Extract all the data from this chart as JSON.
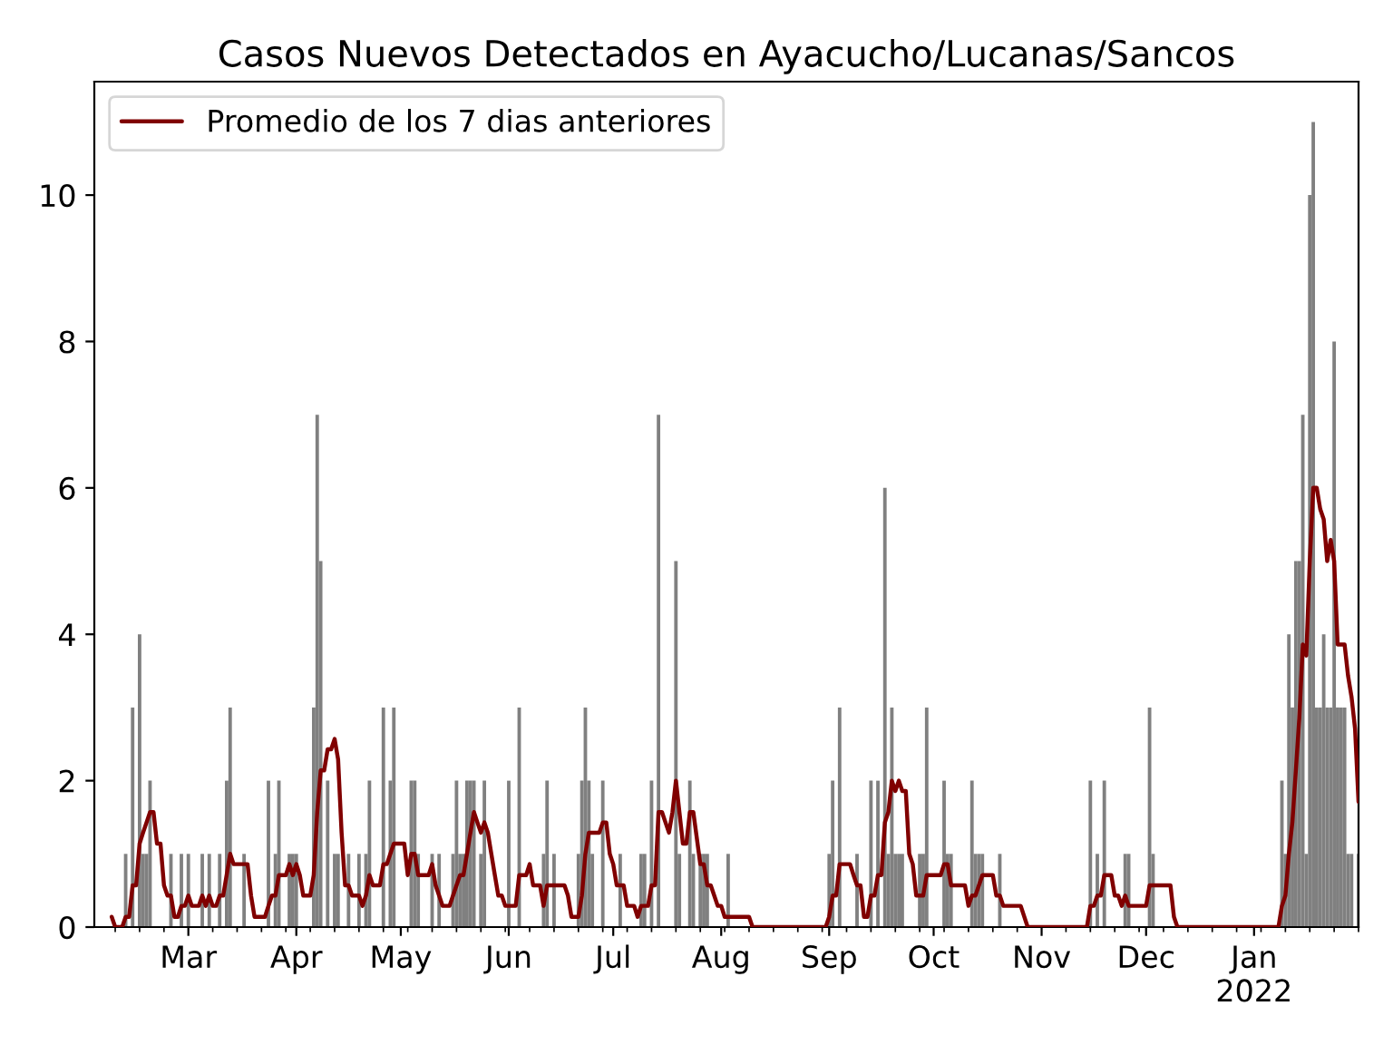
{
  "chart_data": {
    "type": "bar",
    "title": "Casos Nuevos Detectados en Ayacucho/Lucanas/Sancos",
    "xlim": [
      "2021-02-02",
      "2022-01-31"
    ],
    "xticks": [
      {
        "value": "2021-03-01",
        "label": "Mar"
      },
      {
        "value": "2021-04-01",
        "label": "Apr"
      },
      {
        "value": "2021-05-01",
        "label": "May"
      },
      {
        "value": "2021-06-01",
        "label": "Jun"
      },
      {
        "value": "2021-07-01",
        "label": "Jul"
      },
      {
        "value": "2021-08-01",
        "label": "Aug"
      },
      {
        "value": "2021-09-01",
        "label": "Sep"
      },
      {
        "value": "2021-10-01",
        "label": "Oct"
      },
      {
        "value": "2021-11-01",
        "label": "Nov"
      },
      {
        "value": "2021-12-01",
        "label": "Dec"
      },
      {
        "value": "2022-01-01",
        "label": "Jan\n2022"
      },
      {
        "value": "2021-02-08",
        "label": null
      },
      {
        "value": "2021-02-15",
        "label": null
      },
      {
        "value": "2021-02-22",
        "label": null
      },
      {
        "value": "2021-03-08",
        "label": null
      },
      {
        "value": "2021-03-15",
        "label": null
      },
      {
        "value": "2021-03-22",
        "label": null
      },
      {
        "value": "2021-03-29",
        "label": null
      },
      {
        "value": "2021-04-05",
        "label": null
      },
      {
        "value": "2021-04-12",
        "label": null
      },
      {
        "value": "2021-04-19",
        "label": null
      },
      {
        "value": "2021-04-26",
        "label": null
      },
      {
        "value": "2021-05-03",
        "label": null
      },
      {
        "value": "2021-05-10",
        "label": null
      },
      {
        "value": "2021-05-17",
        "label": null
      },
      {
        "value": "2021-05-24",
        "label": null
      },
      {
        "value": "2021-05-31",
        "label": null
      },
      {
        "value": "2021-06-07",
        "label": null
      },
      {
        "value": "2021-06-14",
        "label": null
      },
      {
        "value": "2021-06-21",
        "label": null
      },
      {
        "value": "2021-06-28",
        "label": null
      },
      {
        "value": "2021-07-05",
        "label": null
      },
      {
        "value": "2021-07-12",
        "label": null
      },
      {
        "value": "2021-07-19",
        "label": null
      },
      {
        "value": "2021-07-26",
        "label": null
      },
      {
        "value": "2021-08-02",
        "label": null
      },
      {
        "value": "2021-08-09",
        "label": null
      },
      {
        "value": "2021-08-16",
        "label": null
      },
      {
        "value": "2021-08-23",
        "label": null
      },
      {
        "value": "2021-08-30",
        "label": null
      },
      {
        "value": "2021-09-06",
        "label": null
      },
      {
        "value": "2021-09-13",
        "label": null
      },
      {
        "value": "2021-09-20",
        "label": null
      },
      {
        "value": "2021-09-27",
        "label": null
      },
      {
        "value": "2021-10-04",
        "label": null
      },
      {
        "value": "2021-10-11",
        "label": null
      },
      {
        "value": "2021-10-18",
        "label": null
      },
      {
        "value": "2021-10-25",
        "label": null
      },
      {
        "value": "2021-11-08",
        "label": null
      },
      {
        "value": "2021-11-15",
        "label": null
      },
      {
        "value": "2021-11-22",
        "label": null
      },
      {
        "value": "2021-11-29",
        "label": null
      },
      {
        "value": "2021-12-06",
        "label": null
      },
      {
        "value": "2021-12-13",
        "label": null
      },
      {
        "value": "2021-12-20",
        "label": null
      },
      {
        "value": "2021-12-27",
        "label": null
      },
      {
        "value": "2022-01-03",
        "label": null
      },
      {
        "value": "2022-01-10",
        "label": null
      },
      {
        "value": "2022-01-17",
        "label": null
      },
      {
        "value": "2022-01-24",
        "label": null
      },
      {
        "value": "2022-01-31",
        "label": null
      }
    ],
    "ylim": [
      0,
      11.55
    ],
    "yticks": [
      0,
      2,
      4,
      6,
      8,
      10
    ],
    "legend": "top left",
    "series": [
      {
        "color": "#808080",
        "x": [
          "2021-02-11",
          "2021-02-13",
          "2021-02-15",
          "2021-02-16",
          "2021-02-17",
          "2021-02-18",
          "2021-02-24",
          "2021-02-27",
          "2021-03-01",
          "2021-03-05",
          "2021-03-07",
          "2021-03-10",
          "2021-03-12",
          "2021-03-13",
          "2021-03-17",
          "2021-03-24",
          "2021-03-26",
          "2021-03-27",
          "2021-03-30",
          "2021-03-31",
          "2021-04-01",
          "2021-04-06",
          "2021-04-07",
          "2021-04-08",
          "2021-04-10",
          "2021-04-12",
          "2021-04-13",
          "2021-04-16",
          "2021-04-19",
          "2021-04-21",
          "2021-04-22",
          "2021-04-26",
          "2021-04-28",
          "2021-04-29",
          "2021-05-04",
          "2021-05-05",
          "2021-05-06",
          "2021-05-10",
          "2021-05-12",
          "2021-05-16",
          "2021-05-17",
          "2021-05-18",
          "2021-05-19",
          "2021-05-20",
          "2021-05-21",
          "2021-05-22",
          "2021-05-24",
          "2021-05-25",
          "2021-06-01",
          "2021-06-04",
          "2021-06-11",
          "2021-06-12",
          "2021-06-14",
          "2021-06-21",
          "2021-06-22",
          "2021-06-23",
          "2021-06-24",
          "2021-06-25",
          "2021-06-28",
          "2021-07-03",
          "2021-07-09",
          "2021-07-10",
          "2021-07-12",
          "2021-07-14",
          "2021-07-19",
          "2021-07-20",
          "2021-07-23",
          "2021-07-24",
          "2021-07-26",
          "2021-07-27",
          "2021-07-28",
          "2021-08-03",
          "2021-09-01",
          "2021-09-02",
          "2021-09-04",
          "2021-09-09",
          "2021-09-13",
          "2021-09-15",
          "2021-09-17",
          "2021-09-18",
          "2021-09-19",
          "2021-09-20",
          "2021-09-21",
          "2021-09-22",
          "2021-09-27",
          "2021-09-28",
          "2021-09-29",
          "2021-10-04",
          "2021-10-05",
          "2021-10-06",
          "2021-10-12",
          "2021-10-13",
          "2021-10-14",
          "2021-10-15",
          "2021-10-20",
          "2021-11-15",
          "2021-11-17",
          "2021-11-19",
          "2021-11-25",
          "2021-11-26",
          "2021-12-02",
          "2021-12-03",
          "2022-01-09",
          "2022-01-10",
          "2022-01-11",
          "2022-01-12",
          "2022-01-13",
          "2022-01-14",
          "2022-01-15",
          "2022-01-16",
          "2022-01-17",
          "2022-01-18",
          "2022-01-19",
          "2022-01-20",
          "2022-01-21",
          "2022-01-22",
          "2022-01-23",
          "2022-01-24",
          "2022-01-25",
          "2022-01-26",
          "2022-01-27",
          "2022-01-28",
          "2022-01-29",
          "2022-01-31"
        ],
        "values": [
          1,
          3,
          4,
          1,
          1,
          2,
          1,
          1,
          1,
          1,
          1,
          1,
          2,
          3,
          1,
          2,
          1,
          2,
          1,
          1,
          1,
          3,
          7,
          5,
          2,
          1,
          1,
          1,
          1,
          1,
          2,
          3,
          2,
          3,
          2,
          2,
          1,
          1,
          1,
          1,
          2,
          1,
          1,
          2,
          2,
          2,
          1,
          2,
          2,
          3,
          1,
          2,
          1,
          1,
          2,
          3,
          2,
          1,
          2,
          1,
          1,
          1,
          2,
          7,
          5,
          1,
          2,
          1,
          1,
          1,
          1,
          1,
          1,
          2,
          3,
          1,
          2,
          2,
          6,
          1,
          3,
          1,
          1,
          1,
          1,
          1,
          3,
          2,
          1,
          1,
          2,
          1,
          1,
          1,
          1,
          2,
          1,
          2,
          1,
          1,
          3,
          1,
          2,
          1,
          4,
          3,
          5,
          5,
          7,
          1,
          10,
          11,
          3,
          3,
          4,
          3,
          3,
          8,
          3,
          3,
          3,
          1,
          1,
          1
        ]
      },
      {
        "type": "line",
        "name": "Promedio de los 7 dias anteriores",
        "color": "#800000",
        "x": [
          "2021-02-07",
          "2021-02-08",
          "2021-02-10",
          "2021-02-11",
          "2021-02-12",
          "2021-02-13",
          "2021-02-14",
          "2021-02-15",
          "2021-02-16",
          "2021-02-17",
          "2021-02-18",
          "2021-02-19",
          "2021-02-20",
          "2021-02-21",
          "2021-02-22",
          "2021-02-23",
          "2021-02-24",
          "2021-02-25",
          "2021-02-26",
          "2021-02-27",
          "2021-02-28",
          "2021-03-01",
          "2021-03-02",
          "2021-03-04",
          "2021-03-05",
          "2021-03-06",
          "2021-03-07",
          "2021-03-08",
          "2021-03-09",
          "2021-03-10",
          "2021-03-11",
          "2021-03-12",
          "2021-03-13",
          "2021-03-14",
          "2021-03-18",
          "2021-03-19",
          "2021-03-20",
          "2021-03-23",
          "2021-03-24",
          "2021-03-25",
          "2021-03-26",
          "2021-03-27",
          "2021-03-29",
          "2021-03-30",
          "2021-03-31",
          "2021-04-01",
          "2021-04-02",
          "2021-04-03",
          "2021-04-05",
          "2021-04-06",
          "2021-04-07",
          "2021-04-08",
          "2021-04-09",
          "2021-04-10",
          "2021-04-11",
          "2021-04-12",
          "2021-04-13",
          "2021-04-14",
          "2021-04-15",
          "2021-04-16",
          "2021-04-17",
          "2021-04-19",
          "2021-04-20",
          "2021-04-21",
          "2021-04-22",
          "2021-04-23",
          "2021-04-25",
          "2021-04-26",
          "2021-04-27",
          "2021-04-28",
          "2021-04-29",
          "2021-05-02",
          "2021-05-03",
          "2021-05-04",
          "2021-05-05",
          "2021-05-06",
          "2021-05-09",
          "2021-05-10",
          "2021-05-11",
          "2021-05-12",
          "2021-05-13",
          "2021-05-15",
          "2021-05-16",
          "2021-05-17",
          "2021-05-18",
          "2021-05-19",
          "2021-05-20",
          "2021-05-21",
          "2021-05-22",
          "2021-05-23",
          "2021-05-24",
          "2021-05-25",
          "2021-05-26",
          "2021-05-27",
          "2021-05-28",
          "2021-05-29",
          "2021-05-30",
          "2021-05-31",
          "2021-06-03",
          "2021-06-04",
          "2021-06-06",
          "2021-06-07",
          "2021-06-08",
          "2021-06-10",
          "2021-06-11",
          "2021-06-12",
          "2021-06-17",
          "2021-06-18",
          "2021-06-19",
          "2021-06-21",
          "2021-06-22",
          "2021-06-23",
          "2021-06-24",
          "2021-06-27",
          "2021-06-28",
          "2021-06-29",
          "2021-06-30",
          "2021-07-01",
          "2021-07-02",
          "2021-07-04",
          "2021-07-05",
          "2021-07-07",
          "2021-07-08",
          "2021-07-09",
          "2021-07-11",
          "2021-07-12",
          "2021-07-13",
          "2021-07-14",
          "2021-07-15",
          "2021-07-16",
          "2021-07-17",
          "2021-07-18",
          "2021-07-19",
          "2021-07-21",
          "2021-07-22",
          "2021-07-23",
          "2021-07-24",
          "2021-07-26",
          "2021-07-27",
          "2021-07-28",
          "2021-07-29",
          "2021-07-30",
          "2021-07-31",
          "2021-08-01",
          "2021-08-02",
          "2021-08-09",
          "2021-08-10",
          "2021-08-31",
          "2021-09-01",
          "2021-09-02",
          "2021-09-03",
          "2021-09-04",
          "2021-09-07",
          "2021-09-08",
          "2021-09-09",
          "2021-09-10",
          "2021-09-11",
          "2021-09-12",
          "2021-09-13",
          "2021-09-14",
          "2021-09-15",
          "2021-09-16",
          "2021-09-17",
          "2021-09-18",
          "2021-09-19",
          "2021-09-20",
          "2021-09-21",
          "2021-09-22",
          "2021-09-23",
          "2021-09-24",
          "2021-09-25",
          "2021-09-26",
          "2021-09-28",
          "2021-09-29",
          "2021-10-03",
          "2021-10-04",
          "2021-10-05",
          "2021-10-06",
          "2021-10-10",
          "2021-10-11",
          "2021-10-12",
          "2021-10-13",
          "2021-10-14",
          "2021-10-15",
          "2021-10-18",
          "2021-10-19",
          "2021-10-20",
          "2021-10-21",
          "2021-10-26",
          "2021-10-28",
          "2021-11-14",
          "2021-11-15",
          "2021-11-16",
          "2021-11-17",
          "2021-11-18",
          "2021-11-19",
          "2021-11-21",
          "2021-11-22",
          "2021-11-23",
          "2021-11-24",
          "2021-11-25",
          "2021-11-26",
          "2021-12-01",
          "2021-12-02",
          "2021-12-08",
          "2021-12-09",
          "2021-12-10",
          "2022-01-08",
          "2022-01-09",
          "2022-01-10",
          "2022-01-11",
          "2022-01-12",
          "2022-01-13",
          "2022-01-14",
          "2022-01-15",
          "2022-01-16",
          "2022-01-17",
          "2022-01-18",
          "2022-01-19",
          "2022-01-20",
          "2022-01-21",
          "2022-01-22",
          "2022-01-23",
          "2022-01-24",
          "2022-01-25",
          "2022-01-27",
          "2022-01-28",
          "2022-01-29",
          "2022-01-30",
          "2022-01-31"
        ],
        "values": [
          0.14,
          0,
          0,
          0.14,
          0.14,
          0.57,
          0.57,
          1.14,
          1.29,
          1.43,
          1.57,
          1.57,
          1.14,
          1.14,
          0.57,
          0.43,
          0.43,
          0.14,
          0.14,
          0.29,
          0.29,
          0.43,
          0.29,
          0.29,
          0.43,
          0.29,
          0.43,
          0.29,
          0.29,
          0.43,
          0.43,
          0.71,
          1.0,
          0.86,
          0.86,
          0.43,
          0.14,
          0.14,
          0.29,
          0.43,
          0.43,
          0.71,
          0.71,
          0.86,
          0.71,
          0.86,
          0.71,
          0.43,
          0.43,
          0.71,
          1.57,
          2.14,
          2.14,
          2.43,
          2.43,
          2.57,
          2.29,
          1.29,
          0.57,
          0.57,
          0.43,
          0.43,
          0.29,
          0.43,
          0.71,
          0.57,
          0.57,
          0.86,
          0.86,
          1.0,
          1.14,
          1.14,
          0.71,
          1.0,
          1.0,
          0.71,
          0.71,
          0.86,
          0.57,
          0.43,
          0.29,
          0.29,
          0.43,
          0.57,
          0.71,
          0.71,
          1.0,
          1.29,
          1.57,
          1.43,
          1.29,
          1.43,
          1.29,
          1.0,
          0.71,
          0.43,
          0.43,
          0.29,
          0.29,
          0.71,
          0.71,
          0.86,
          0.57,
          0.57,
          0.29,
          0.57,
          0.57,
          0.43,
          0.14,
          0.14,
          0.43,
          1.0,
          1.29,
          1.29,
          1.43,
          1.43,
          1.0,
          0.86,
          0.57,
          0.57,
          0.29,
          0.29,
          0.14,
          0.29,
          0.29,
          0.57,
          0.57,
          1.57,
          1.57,
          1.43,
          1.29,
          1.57,
          2.0,
          1.14,
          1.14,
          1.57,
          1.57,
          0.86,
          0.86,
          0.57,
          0.57,
          0.43,
          0.29,
          0.29,
          0.14,
          0.14,
          0,
          0,
          0.14,
          0.43,
          0.43,
          0.86,
          0.86,
          0.71,
          0.57,
          0.57,
          0.14,
          0.14,
          0.43,
          0.43,
          0.71,
          0.71,
          1.43,
          1.57,
          2.0,
          1.86,
          2.0,
          1.86,
          1.86,
          1.0,
          0.86,
          0.43,
          0.43,
          0.71,
          0.71,
          0.86,
          0.86,
          0.57,
          0.57,
          0.29,
          0.43,
          0.43,
          0.57,
          0.71,
          0.71,
          0.43,
          0.43,
          0.29,
          0.29,
          0,
          0,
          0.29,
          0.29,
          0.43,
          0.43,
          0.71,
          0.71,
          0.43,
          0.43,
          0.29,
          0.43,
          0.29,
          0.29,
          0.57,
          0.57,
          0.14,
          0,
          0,
          0.29,
          0.43,
          1.0,
          1.43,
          2.14,
          2.86,
          3.86,
          3.71,
          5.0,
          6.0,
          6.0,
          5.71,
          5.57,
          5.0,
          5.29,
          5.0,
          3.86,
          3.86,
          3.43,
          3.14,
          2.71,
          1.71
        ]
      }
    ]
  }
}
